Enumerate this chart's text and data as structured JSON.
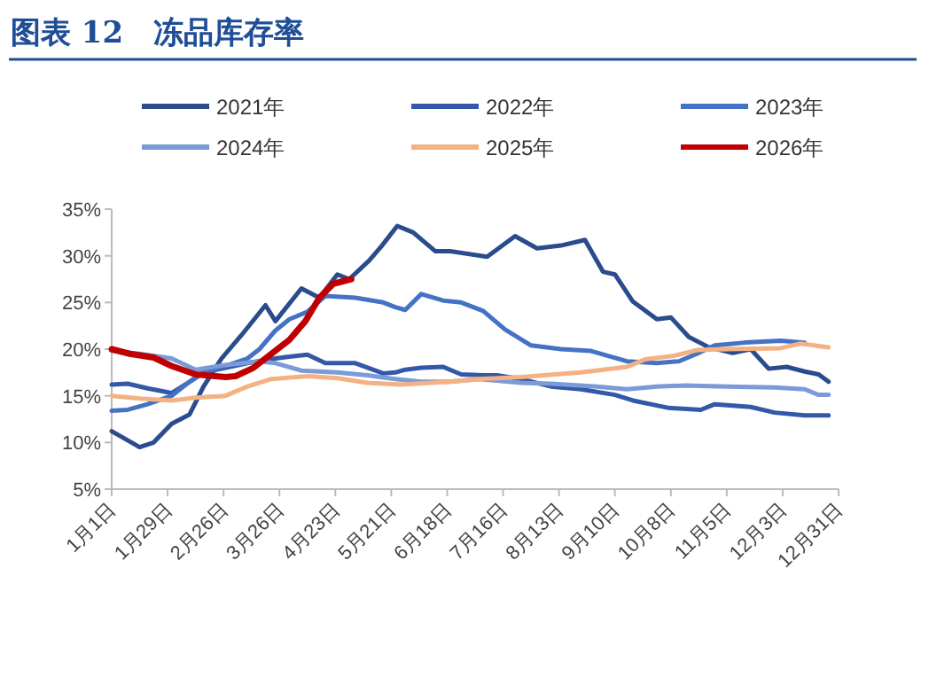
{
  "chart_data": {
    "type": "line",
    "title": "图表 12　冻品库存率",
    "legend": "top",
    "grid": false,
    "marker": "none",
    "line_style": "solid",
    "xlim": [
      "--01-01",
      "--12-31"
    ],
    "ylim": [
      5,
      35
    ],
    "xticks": [
      {
        "value": "--01-01",
        "label": "1月1日"
      },
      {
        "value": "--01-29",
        "label": "1月29日"
      },
      {
        "value": "--02-26",
        "label": "2月26日"
      },
      {
        "value": "--03-26",
        "label": "3月26日"
      },
      {
        "value": "--04-23",
        "label": "4月23日"
      },
      {
        "value": "--05-21",
        "label": "5月21日"
      },
      {
        "value": "--06-18",
        "label": "6月18日"
      },
      {
        "value": "--07-16",
        "label": "7月16日"
      },
      {
        "value": "--08-13",
        "label": "8月13日"
      },
      {
        "value": "--09-10",
        "label": "9月10日"
      },
      {
        "value": "--10-08",
        "label": "10月8日"
      },
      {
        "value": "--11-05",
        "label": "11月5日"
      },
      {
        "value": "--12-03",
        "label": "12月3日"
      },
      {
        "value": "--12-31",
        "label": "12月31日"
      }
    ],
    "yticks": [
      {
        "value": 5,
        "label": "5%"
      },
      {
        "value": 10,
        "label": "10%"
      },
      {
        "value": 15,
        "label": "15%"
      },
      {
        "value": 20,
        "label": "20%"
      },
      {
        "value": 25,
        "label": "25%"
      },
      {
        "value": 30,
        "label": "30%"
      },
      {
        "value": 35,
        "label": "35%"
      }
    ],
    "series": [
      {
        "name": "2021年",
        "color": "#2b4c8c",
        "x": [
          "--01-01",
          "--01-15",
          "--01-22",
          "--01-31",
          "--02-09",
          "--02-16",
          "--02-25",
          "--03-07",
          "--03-19",
          "--03-24",
          "--04-06",
          "--04-15",
          "--04-24",
          "--04-30",
          "--05-10",
          "--05-16",
          "--05-24",
          "--06-01",
          "--06-12",
          "--06-19",
          "--07-08",
          "--07-22",
          "--08-02",
          "--08-14",
          "--08-26",
          "--09-04",
          "--09-10",
          "--09-19",
          "--10-01",
          "--10-08",
          "--10-17",
          "--10-27",
          "--11-08",
          "--11-17",
          "--11-26",
          "--12-05",
          "--12-14",
          "--12-21",
          "--12-26"
        ],
        "values": [
          11.2,
          9.5,
          10,
          12,
          13,
          16,
          19,
          21.5,
          24.7,
          23,
          26.5,
          25.5,
          28,
          27.5,
          29.5,
          31,
          33.2,
          32.5,
          30.5,
          30.5,
          29.9,
          32.1,
          30.8,
          31.1,
          31.7,
          28.3,
          28,
          25.1,
          23.2,
          23.4,
          21.3,
          20.2,
          19.6,
          20,
          17.9,
          18.1,
          17.6,
          17.3,
          16.5
        ]
      },
      {
        "name": "2022年",
        "color": "#3358a8",
        "x": [
          "--01-01",
          "--01-09",
          "--01-19",
          "--01-31",
          "--02-09",
          "--02-16",
          "--02-27",
          "--03-10",
          "--03-24",
          "--03-31",
          "--04-09",
          "--04-18",
          "--05-03",
          "--05-17",
          "--05-23",
          "--05-28",
          "--06-05",
          "--06-16",
          "--06-25",
          "--07-06",
          "--07-13",
          "--07-25",
          "--08-09",
          "--08-24",
          "--09-10",
          "--09-19",
          "--10-07",
          "--10-23",
          "--10-30",
          "--11-17",
          "--11-29",
          "--12-14",
          "--12-26"
        ],
        "values": [
          16.2,
          16.3,
          15.8,
          15.3,
          16.5,
          17.5,
          18,
          18.5,
          19,
          19.2,
          19.4,
          18.5,
          18.5,
          17.4,
          17.5,
          17.8,
          18,
          18.1,
          17.3,
          17.2,
          17.2,
          16.8,
          16,
          15.7,
          15.1,
          14.5,
          13.7,
          13.5,
          14.1,
          13.8,
          13.2,
          12.9,
          12.9
        ]
      },
      {
        "name": "2023年",
        "color": "#4472c4",
        "x": [
          "--01-01",
          "--01-09",
          "--01-19",
          "--01-31",
          "--02-09",
          "--02-16",
          "--02-27",
          "--03-10",
          "--03-16",
          "--03-24",
          "--03-31",
          "--04-09",
          "--04-18",
          "--05-03",
          "--05-17",
          "--05-23",
          "--05-28",
          "--06-05",
          "--06-16",
          "--06-25",
          "--07-06",
          "--07-17",
          "--07-30",
          "--08-14",
          "--08-29",
          "--09-16",
          "--10-01",
          "--10-12",
          "--10-21",
          "--10-30",
          "--11-14",
          "--12-02",
          "--12-14"
        ],
        "values": [
          13.4,
          13.5,
          14.1,
          15,
          16.5,
          17.5,
          18.2,
          19,
          20,
          22,
          23.2,
          24,
          25.7,
          25.5,
          25,
          24.5,
          24.2,
          25.9,
          25.2,
          25,
          24.1,
          22.1,
          20.4,
          20,
          19.8,
          18.7,
          18.5,
          18.7,
          19.5,
          20.4,
          20.7,
          20.9,
          20.7
        ]
      },
      {
        "name": "2024年",
        "color": "#7a9ad8",
        "x": [
          "--01-01",
          "--01-15",
          "--01-31",
          "--02-12",
          "--02-27",
          "--03-16",
          "--03-24",
          "--04-06",
          "--04-24",
          "--05-09",
          "--05-23",
          "--06-05",
          "--06-19",
          "--07-04",
          "--07-25",
          "--08-09",
          "--09-01",
          "--09-16",
          "--10-01",
          "--10-15",
          "--11-05",
          "--11-29",
          "--12-14",
          "--12-21",
          "--12-26"
        ],
        "values": [
          19.8,
          19.5,
          19,
          17.8,
          18.3,
          18.7,
          18.5,
          17.7,
          17.5,
          17.2,
          16.8,
          16.5,
          16.5,
          16.8,
          16.4,
          16.3,
          16,
          15.7,
          16,
          16.1,
          16,
          15.9,
          15.7,
          15.1,
          15.1
        ]
      },
      {
        "name": "2025年",
        "color": "#f4b183",
        "x": [
          "--01-01",
          "--01-15",
          "--01-31",
          "--02-12",
          "--02-27",
          "--03-10",
          "--03-22",
          "--04-09",
          "--04-24",
          "--05-09",
          "--05-26",
          "--06-19",
          "--07-04",
          "--07-25",
          "--08-24",
          "--09-16",
          "--09-25",
          "--10-10",
          "--10-21",
          "--11-05",
          "--12-02",
          "--12-12",
          "--12-26"
        ],
        "values": [
          15,
          14.7,
          14.5,
          14.8,
          15,
          16,
          16.8,
          17.1,
          16.9,
          16.4,
          16.2,
          16.5,
          16.8,
          17,
          17.5,
          18.1,
          18.9,
          19.3,
          19.9,
          20,
          20.1,
          20.6,
          20.2
        ]
      },
      {
        "name": "2026年",
        "color": "#c00000",
        "x": [
          "--01-01",
          "--01-10",
          "--01-22",
          "--01-31",
          "--02-12",
          "--02-27",
          "--03-04",
          "--03-13",
          "--03-22",
          "--03-31",
          "--04-08",
          "--04-15",
          "--04-22",
          "--05-01"
        ],
        "values": [
          20,
          19.5,
          19.1,
          18.2,
          17.3,
          17,
          17.1,
          18,
          19.5,
          21,
          23,
          25.5,
          27,
          27.5
        ]
      }
    ]
  }
}
